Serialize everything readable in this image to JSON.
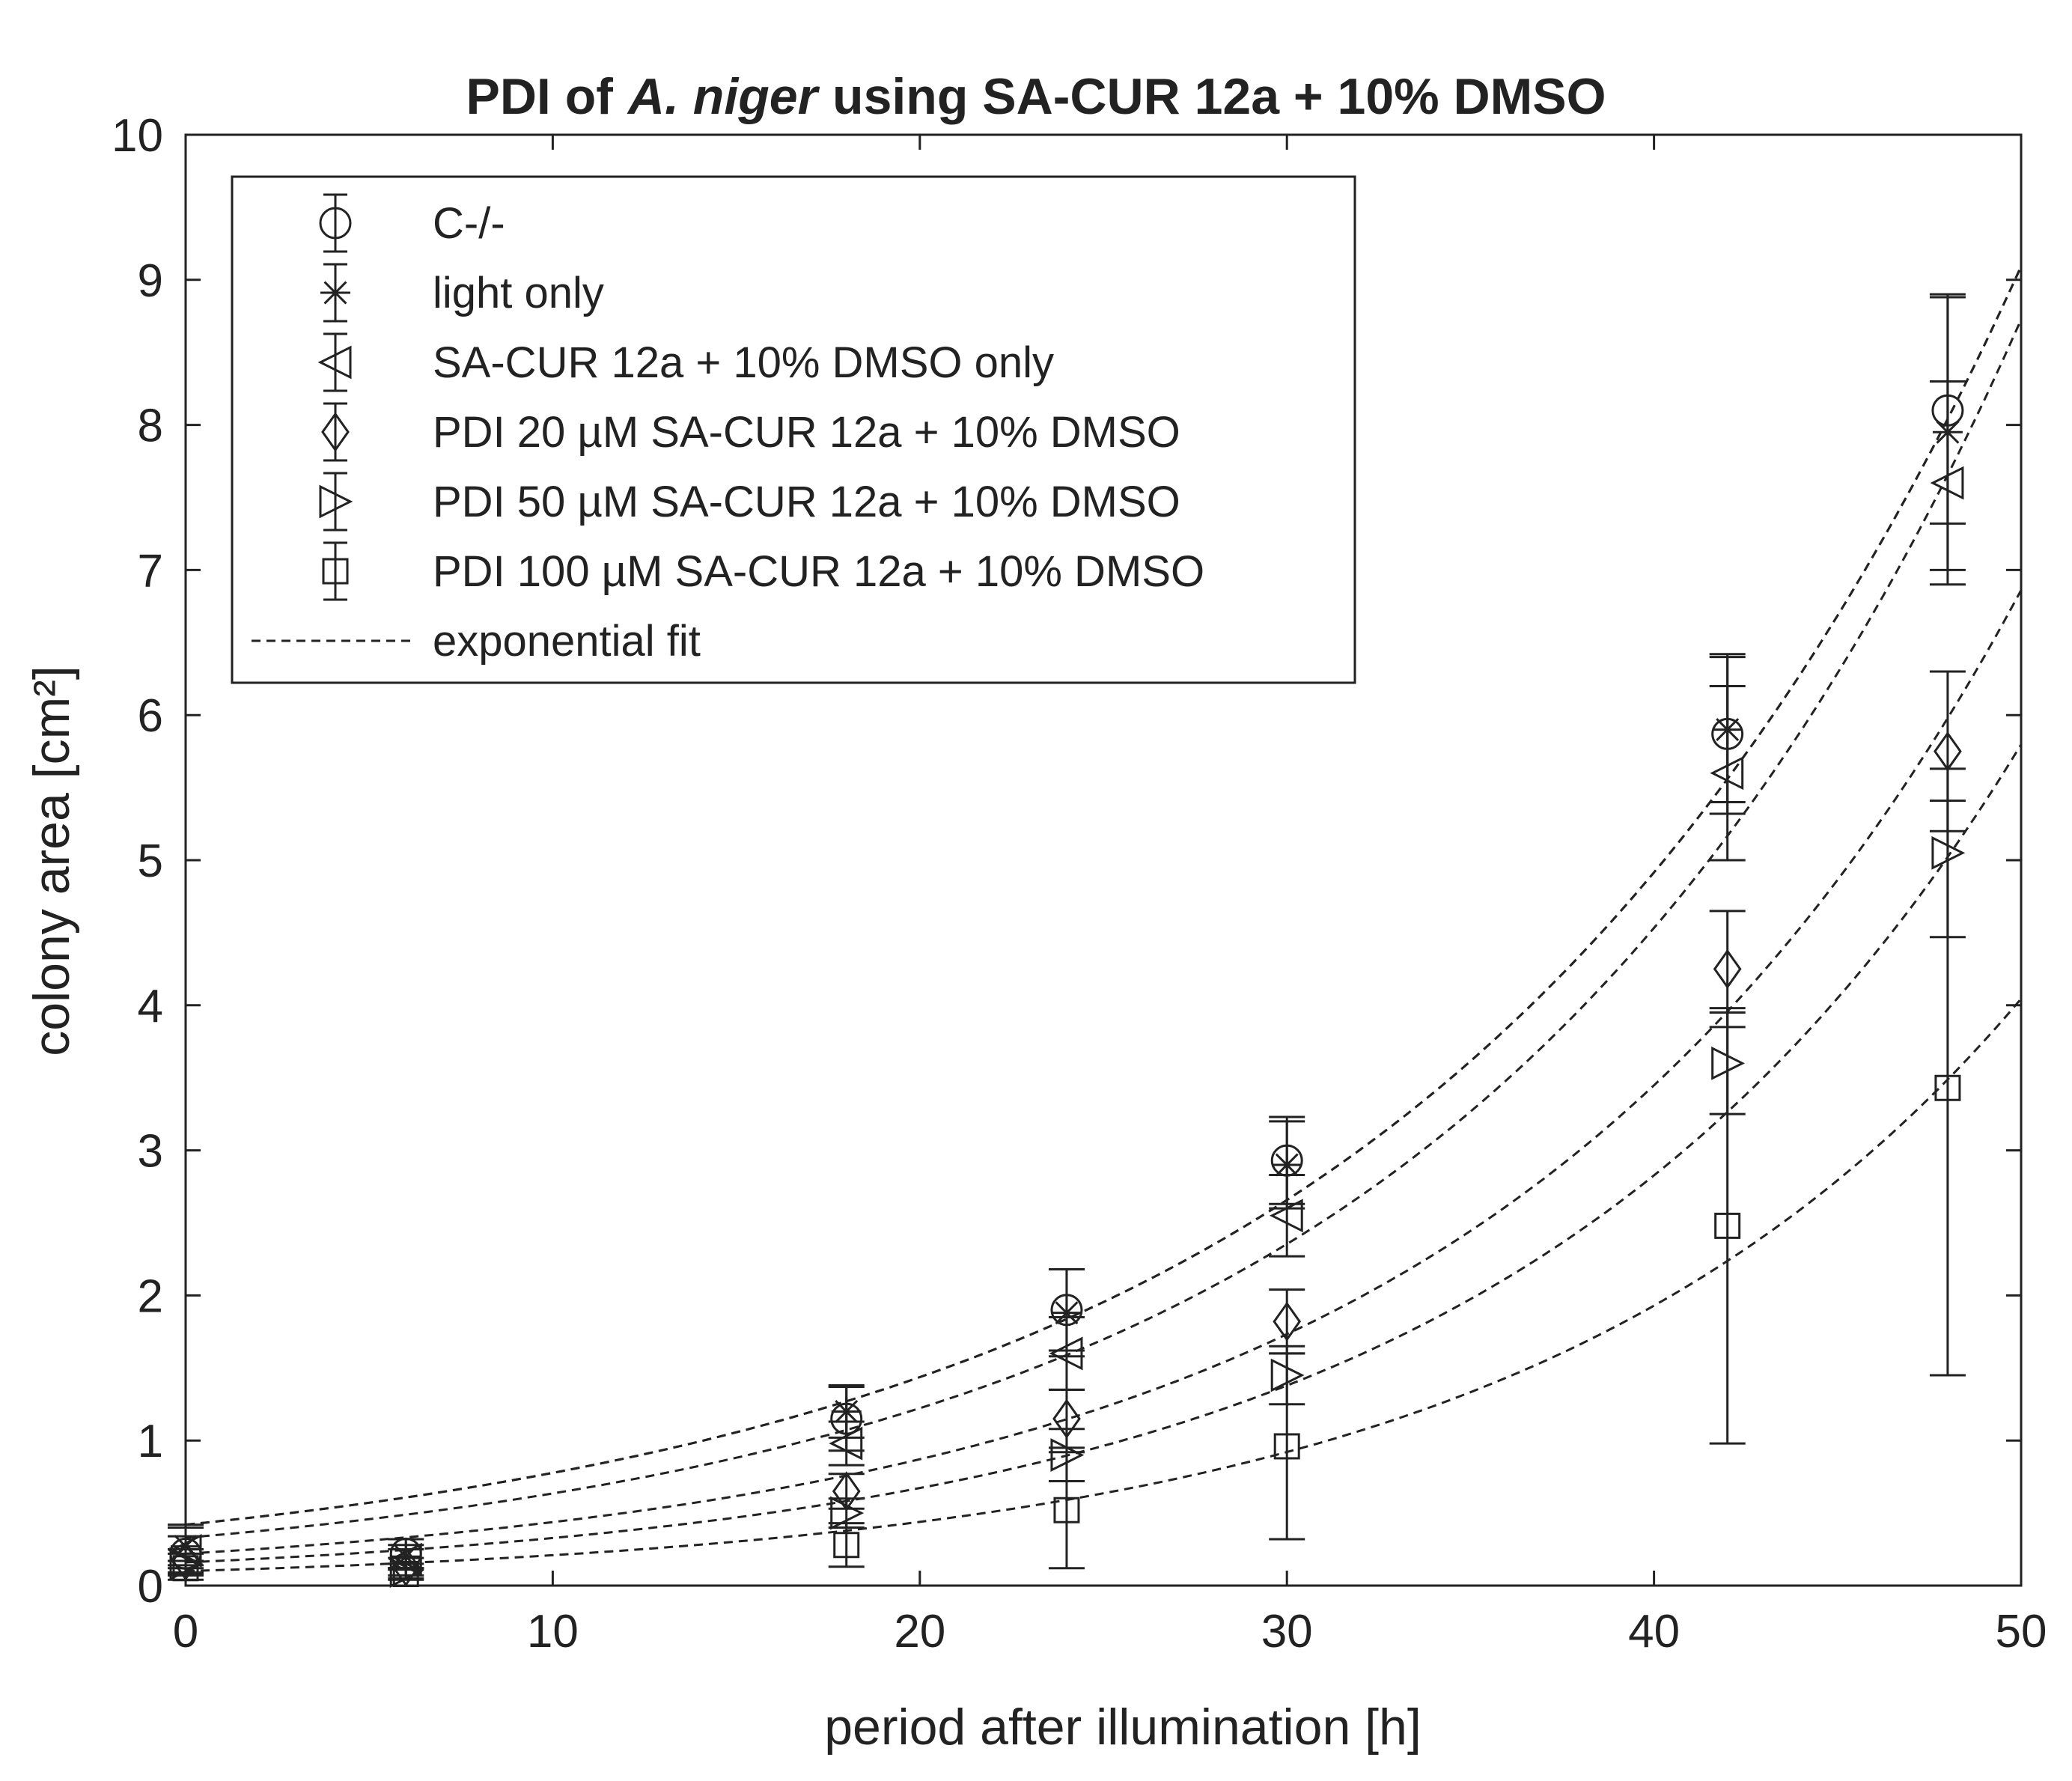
{
  "chart_data": {
    "type": "scatter",
    "title_prefix": "PDI of",
    "title_italic": "A. niger",
    "title_suffix": "using SA-CUR 12a + 10% DMSO",
    "xlabel": "period after illumination [h]",
    "ylabel": "colony area [cm²]",
    "xlim": [
      0,
      50
    ],
    "ylim": [
      0,
      10
    ],
    "xticks": [
      0,
      10,
      20,
      30,
      40,
      50
    ],
    "yticks": [
      0,
      1,
      2,
      3,
      4,
      5,
      6,
      7,
      8,
      9,
      10
    ],
    "legend_position": "top-left",
    "colors": {
      "ink": "#222222",
      "background": "#ffffff"
    },
    "x": [
      0,
      6,
      18,
      24,
      30,
      42,
      48
    ],
    "series": [
      {
        "name": "C-/-",
        "marker": "circle",
        "values": [
          0.22,
          0.22,
          1.15,
          1.9,
          2.93,
          5.87,
          8.1
        ],
        "errors": [
          0.18,
          0.1,
          0.22,
          0.28,
          0.3,
          0.55,
          0.78
        ],
        "fit": {
          "a": 0.42,
          "b": 0.0615
        }
      },
      {
        "name": "light only",
        "marker": "asterisk",
        "values": [
          0.27,
          0.2,
          1.2,
          1.88,
          2.9,
          5.9,
          7.95
        ],
        "errors": [
          0.15,
          0.08,
          0.18,
          0.3,
          0.3,
          0.5,
          0.95
        ],
        "fit": {
          "a": 0.42,
          "b": 0.0615
        }
      },
      {
        "name": "SA-CUR 12a + 10% DMSO only",
        "marker": "triangle-left",
        "values": [
          0.24,
          0.18,
          0.98,
          1.6,
          2.55,
          5.6,
          7.6
        ],
        "errors": [
          0.1,
          0.07,
          0.15,
          0.25,
          0.28,
          0.6,
          0.7
        ],
        "fit": {
          "a": 0.33,
          "b": 0.0655
        }
      },
      {
        "name": "PDI 20 µM SA-CUR 12a + 10% DMSO",
        "marker": "diamond",
        "values": [
          0.17,
          0.13,
          0.65,
          1.15,
          1.82,
          4.25,
          5.75
        ],
        "errors": [
          0.08,
          0.06,
          0.12,
          0.2,
          0.22,
          0.4,
          0.55
        ],
        "fit": {
          "a": 0.22,
          "b": 0.0688
        }
      },
      {
        "name": "PDI 50 µM SA-CUR 12a + 10% DMSO",
        "marker": "triangle-right",
        "values": [
          0.15,
          0.1,
          0.5,
          0.9,
          1.45,
          3.6,
          5.05
        ],
        "errors": [
          0.07,
          0.05,
          0.1,
          0.18,
          0.2,
          0.35,
          0.58
        ],
        "fit": {
          "a": 0.16,
          "b": 0.0718
        }
      },
      {
        "name": "PDI 100 µM SA-CUR 12a + 10% DMSO",
        "marker": "square",
        "values": [
          0.12,
          0.08,
          0.28,
          0.52,
          0.96,
          2.48,
          3.43
        ],
        "errors": [
          0.05,
          0.04,
          0.15,
          0.4,
          0.64,
          1.5,
          1.98
        ],
        "fit": {
          "a": 0.1,
          "b": 0.074
        }
      }
    ],
    "fit_legend_label": "exponential fit"
  }
}
